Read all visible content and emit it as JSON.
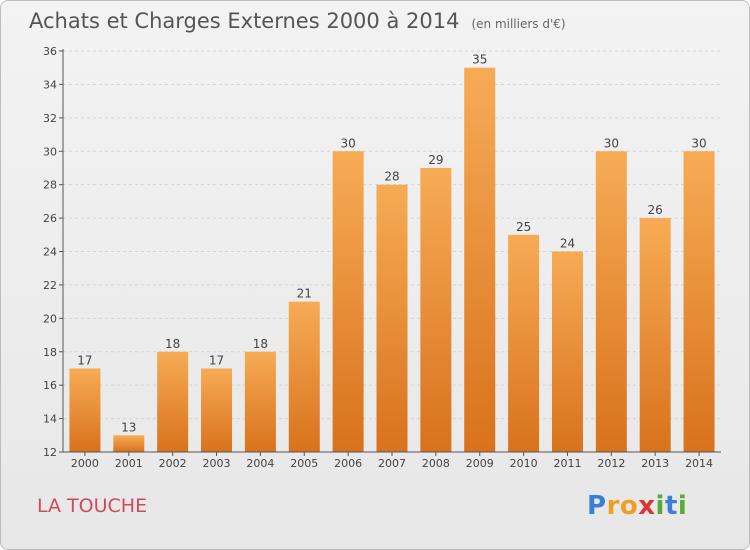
{
  "title": "Achats et Charges Externes 2000 à 2014",
  "unit_note": "(en milliers d'€)",
  "commune": "LA TOUCHE",
  "logo_text": "Proxiti",
  "colors": {
    "bar_light": "#f5a64d",
    "bar_dark": "#d9721c",
    "commune_text": "#d24a5a"
  },
  "chart_data": {
    "type": "bar",
    "title": "Achats et Charges Externes 2000 à 2014",
    "xlabel": "",
    "ylabel": "",
    "categories": [
      "2000",
      "2001",
      "2002",
      "2003",
      "2004",
      "2005",
      "2006",
      "2007",
      "2008",
      "2009",
      "2010",
      "2011",
      "2012",
      "2013",
      "2014"
    ],
    "values": [
      17,
      13,
      18,
      17,
      18,
      21,
      30,
      28,
      29,
      35,
      25,
      24,
      30,
      26,
      30
    ],
    "ylim": [
      12,
      36
    ],
    "yticks": [
      12,
      14,
      16,
      18,
      20,
      22,
      24,
      26,
      28,
      30,
      32,
      34,
      36
    ],
    "grid": true,
    "data_labels": true
  }
}
